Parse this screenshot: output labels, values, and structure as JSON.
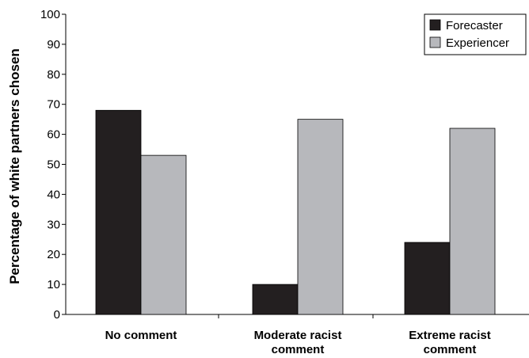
{
  "chart_data": {
    "type": "bar",
    "title": "",
    "xlabel": "",
    "ylabel": "Percentage of white partners chosen",
    "ylim": [
      0,
      100
    ],
    "yticks": [
      "0",
      "10",
      "20",
      "30",
      "40",
      "50",
      "60",
      "70",
      "80",
      "90",
      "100"
    ],
    "categories": [
      [
        "No comment"
      ],
      [
        "Moderate racist",
        "comment"
      ],
      [
        "Extreme racist",
        "comment"
      ]
    ],
    "series": [
      {
        "name": "Forecaster",
        "values": [
          68,
          10,
          24
        ],
        "color": "#231f20"
      },
      {
        "name": "Experiencer",
        "values": [
          53,
          65,
          62
        ],
        "color": "#b7b8bc"
      }
    ],
    "legend_position": "top-right",
    "grid": false
  }
}
